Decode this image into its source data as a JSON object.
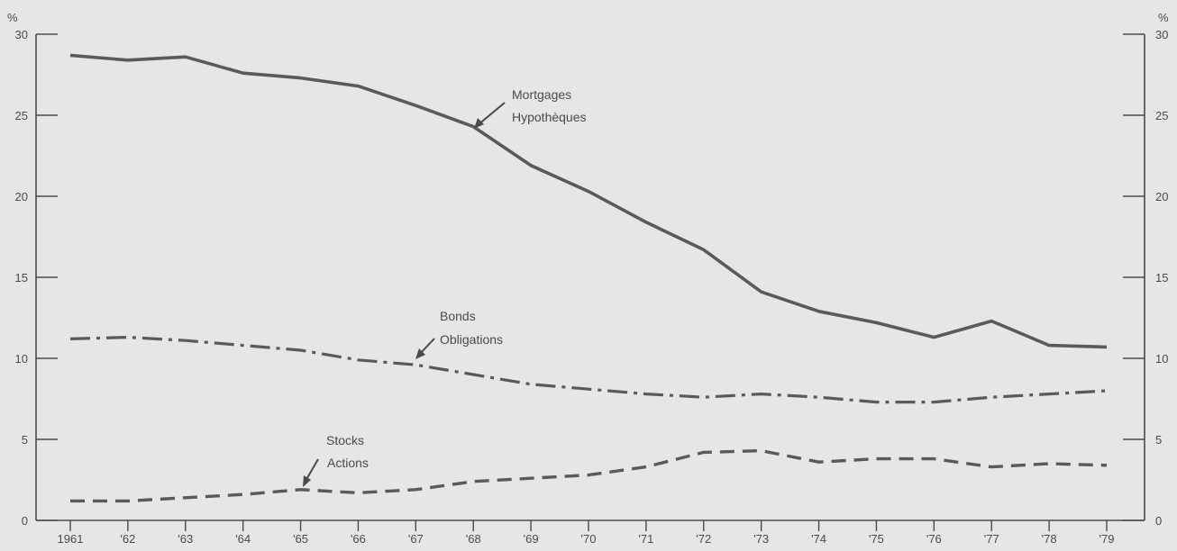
{
  "chart_data": {
    "type": "line",
    "title": "",
    "x": [
      "1961",
      "'62",
      "'63",
      "'64",
      "'65",
      "'66",
      "'67",
      "'68",
      "'69",
      "'70",
      "'71",
      "'72",
      "'73",
      "'74",
      "'75",
      "'76",
      "'77",
      "'78",
      "'79"
    ],
    "ylim": [
      0,
      30
    ],
    "yticks": [
      0,
      5,
      10,
      15,
      20,
      25,
      30
    ],
    "ylabel_left": "%",
    "ylabel_right": "%",
    "grid": false,
    "legend": "none",
    "series": [
      {
        "key": "mortgages",
        "label_line1": "Mortgages",
        "label_line2": "Hypothèques",
        "style": "solid",
        "color": "#5a5a5a",
        "values": [
          28.7,
          28.4,
          28.6,
          27.6,
          27.3,
          26.8,
          25.6,
          24.3,
          21.9,
          20.3,
          18.4,
          16.7,
          14.1,
          12.9,
          12.2,
          11.3,
          12.3,
          10.8,
          10.7
        ]
      },
      {
        "key": "bonds",
        "label_line1": "Bonds",
        "label_line2": "Obligations",
        "style": "dash-dot",
        "color": "#5a5a5a",
        "values": [
          11.2,
          11.3,
          11.1,
          10.8,
          10.5,
          9.9,
          9.6,
          9.0,
          8.4,
          8.1,
          7.8,
          7.6,
          7.8,
          7.6,
          7.3,
          7.3,
          7.6,
          7.8,
          8.0
        ]
      },
      {
        "key": "stocks",
        "label_line1": "Stocks",
        "label_line2": "Actions",
        "style": "dashed",
        "color": "#5a5a5a",
        "values": [
          1.2,
          1.2,
          1.4,
          1.6,
          1.9,
          1.7,
          1.9,
          2.4,
          2.6,
          2.8,
          3.3,
          4.2,
          4.3,
          3.6,
          3.8,
          3.8,
          3.3,
          3.5,
          3.4
        ]
      }
    ]
  }
}
